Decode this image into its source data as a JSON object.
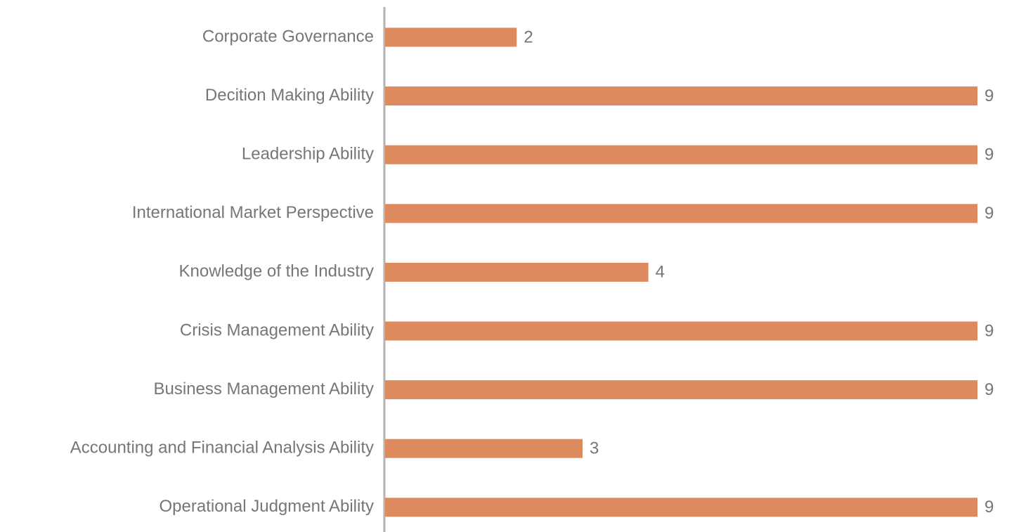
{
  "chart_data": {
    "type": "bar",
    "orientation": "horizontal",
    "categories": [
      "Corporate Governance",
      "Decition Making Ability",
      "Leadership Ability",
      "International Market Perspective",
      "Knowledge of the Industry",
      "Crisis Management Ability",
      "Business Management Ability",
      "Accounting and Financial Analysis Ability",
      "Operational Judgment Ability"
    ],
    "values": [
      2,
      9,
      9,
      9,
      4,
      9,
      9,
      3,
      9
    ],
    "color": "#de8a5f",
    "xlim": [
      0,
      9
    ]
  }
}
